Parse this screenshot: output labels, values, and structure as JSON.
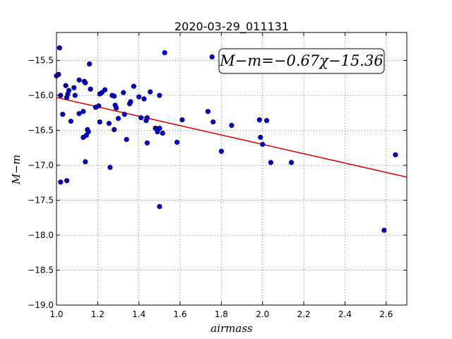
{
  "chart_data": {
    "type": "scatter",
    "title": "2020-03-29_011131",
    "xlabel": "airmass",
    "ylabel": "M−m",
    "xlim": [
      1.0,
      2.7
    ],
    "ylim": [
      -19.0,
      -15.1
    ],
    "y_inverted": true,
    "grid": true,
    "xticks": [
      1.0,
      1.2,
      1.4,
      1.6,
      1.8,
      2.0,
      2.2,
      2.4,
      2.6
    ],
    "yticks": [
      -15.5,
      -16.0,
      -16.5,
      -17.0,
      -17.5,
      -18.0,
      -18.5,
      -19.0
    ],
    "xtick_labels": [
      "1.0",
      "1.2",
      "1.4",
      "1.6",
      "1.8",
      "2.0",
      "2.2",
      "2.4",
      "2.6"
    ],
    "ytick_labels": [
      "−15.5",
      "−16.0",
      "−16.5",
      "−17.0",
      "−17.5",
      "−18.0",
      "−18.5",
      "−19.0"
    ],
    "point_color": "#0000cc",
    "fit_color": "#dd0000",
    "fit": {
      "slope": -0.67,
      "intercept": -15.36
    },
    "annotation": "M−m=−0.67χ−15.36",
    "points": [
      {
        "x": 1.0,
        "y": -15.72
      },
      {
        "x": 1.01,
        "y": -15.7
      },
      {
        "x": 1.015,
        "y": -15.32
      },
      {
        "x": 1.02,
        "y": -16.0
      },
      {
        "x": 1.02,
        "y": -17.24
      },
      {
        "x": 1.03,
        "y": -16.27
      },
      {
        "x": 1.045,
        "y": -15.86
      },
      {
        "x": 1.05,
        "y": -16.03
      },
      {
        "x": 1.05,
        "y": -17.22
      },
      {
        "x": 1.055,
        "y": -15.98
      },
      {
        "x": 1.06,
        "y": -15.93
      },
      {
        "x": 1.07,
        "y": -16.37
      },
      {
        "x": 1.085,
        "y": -15.89
      },
      {
        "x": 1.09,
        "y": -16.0
      },
      {
        "x": 1.11,
        "y": -15.78
      },
      {
        "x": 1.11,
        "y": -16.26
      },
      {
        "x": 1.13,
        "y": -16.23
      },
      {
        "x": 1.13,
        "y": -16.6
      },
      {
        "x": 1.135,
        "y": -15.8
      },
      {
        "x": 1.14,
        "y": -15.82
      },
      {
        "x": 1.14,
        "y": -16.95
      },
      {
        "x": 1.145,
        "y": -16.57
      },
      {
        "x": 1.15,
        "y": -16.49
      },
      {
        "x": 1.155,
        "y": -16.52
      },
      {
        "x": 1.16,
        "y": -15.55
      },
      {
        "x": 1.165,
        "y": -15.91
      },
      {
        "x": 1.19,
        "y": -16.17
      },
      {
        "x": 1.205,
        "y": -16.15
      },
      {
        "x": 1.21,
        "y": -16.38
      },
      {
        "x": 1.21,
        "y": -15.98
      },
      {
        "x": 1.22,
        "y": -15.96
      },
      {
        "x": 1.235,
        "y": -15.92
      },
      {
        "x": 1.255,
        "y": -16.4
      },
      {
        "x": 1.26,
        "y": -17.03
      },
      {
        "x": 1.27,
        "y": -16.0
      },
      {
        "x": 1.28,
        "y": -16.01
      },
      {
        "x": 1.28,
        "y": -16.49
      },
      {
        "x": 1.285,
        "y": -16.14
      },
      {
        "x": 1.29,
        "y": -16.18
      },
      {
        "x": 1.3,
        "y": -16.33
      },
      {
        "x": 1.325,
        "y": -15.96
      },
      {
        "x": 1.33,
        "y": -16.27
      },
      {
        "x": 1.34,
        "y": -16.63
      },
      {
        "x": 1.355,
        "y": -16.12
      },
      {
        "x": 1.36,
        "y": -16.09
      },
      {
        "x": 1.375,
        "y": -15.87
      },
      {
        "x": 1.4,
        "y": -16.02
      },
      {
        "x": 1.41,
        "y": -16.32
      },
      {
        "x": 1.425,
        "y": -16.05
      },
      {
        "x": 1.435,
        "y": -16.36
      },
      {
        "x": 1.44,
        "y": -16.32
      },
      {
        "x": 1.44,
        "y": -16.68
      },
      {
        "x": 1.455,
        "y": -15.95
      },
      {
        "x": 1.48,
        "y": -16.47
      },
      {
        "x": 1.49,
        "y": -16.52
      },
      {
        "x": 1.5,
        "y": -16.47
      },
      {
        "x": 1.5,
        "y": -16.0
      },
      {
        "x": 1.5,
        "y": -17.59
      },
      {
        "x": 1.515,
        "y": -16.54
      },
      {
        "x": 1.525,
        "y": -15.39
      },
      {
        "x": 1.585,
        "y": -16.67
      },
      {
        "x": 1.61,
        "y": -16.35
      },
      {
        "x": 1.735,
        "y": -16.23
      },
      {
        "x": 1.755,
        "y": -15.45
      },
      {
        "x": 1.76,
        "y": -16.38
      },
      {
        "x": 1.8,
        "y": -16.8
      },
      {
        "x": 1.85,
        "y": -16.43
      },
      {
        "x": 1.985,
        "y": -16.35
      },
      {
        "x": 1.99,
        "y": -16.6
      },
      {
        "x": 2.0,
        "y": -16.7
      },
      {
        "x": 2.02,
        "y": -16.36
      },
      {
        "x": 2.04,
        "y": -16.96
      },
      {
        "x": 2.14,
        "y": -16.96
      },
      {
        "x": 2.59,
        "y": -17.93
      },
      {
        "x": 2.645,
        "y": -16.85
      }
    ]
  }
}
